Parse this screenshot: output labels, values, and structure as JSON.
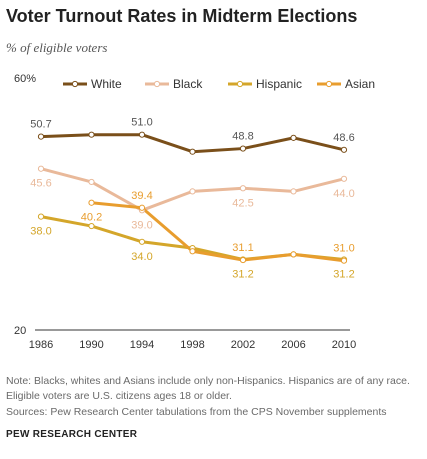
{
  "chart_data": {
    "type": "line",
    "title": "Voter Turnout Rates in Midterm Elections",
    "subtitle": "% of eligible voters",
    "x": [
      1986,
      1990,
      1994,
      1998,
      2002,
      2006,
      2010
    ],
    "x_tick_labels": [
      "1986",
      "1990",
      "1994",
      "1998",
      "2002",
      "2006",
      "2010"
    ],
    "ylim": [
      20,
      60
    ],
    "y_tick_labels": [
      "20",
      "60%"
    ],
    "grid": false,
    "legend_position": "top",
    "series": [
      {
        "name": "White",
        "color": "#7a4f1a",
        "values": [
          50.7,
          51.0,
          51.0,
          48.3,
          48.8,
          50.5,
          48.6
        ]
      },
      {
        "name": "Black",
        "color": "#e9b99a",
        "values": [
          45.6,
          43.5,
          39.0,
          42.0,
          42.5,
          42.0,
          44.0
        ]
      },
      {
        "name": "Hispanic",
        "color": "#d4a62a",
        "values": [
          38.0,
          36.5,
          34.0,
          33.0,
          31.2,
          32.0,
          31.2
        ]
      },
      {
        "name": "Asian",
        "color": "#e89d2e",
        "x": [
          1990,
          1994,
          1998,
          2002,
          2006,
          2010
        ],
        "values": [
          40.2,
          39.4,
          32.5,
          31.1,
          32.0,
          31.0
        ]
      }
    ],
    "data_labels": [
      {
        "text": "50.7",
        "series": "White",
        "x": 1986,
        "pos": "above"
      },
      {
        "text": "51.0",
        "series": "White",
        "x": 1994,
        "pos": "above"
      },
      {
        "text": "48.8",
        "series": "White",
        "x": 2002,
        "pos": "above"
      },
      {
        "text": "48.6",
        "series": "White",
        "x": 2010,
        "pos": "above"
      },
      {
        "text": "45.6",
        "series": "Black",
        "x": 1986,
        "pos": "below"
      },
      {
        "text": "39.0",
        "series": "Black",
        "x": 1994,
        "pos": "below"
      },
      {
        "text": "42.5",
        "series": "Black",
        "x": 2002,
        "pos": "below"
      },
      {
        "text": "44.0",
        "series": "Black",
        "x": 2010,
        "pos": "below"
      },
      {
        "text": "38.0",
        "series": "Hispanic",
        "x": 1986,
        "pos": "below"
      },
      {
        "text": "34.0",
        "series": "Hispanic",
        "x": 1994,
        "pos": "below"
      },
      {
        "text": "31.2",
        "series": "Hispanic",
        "x": 2002,
        "pos": "below"
      },
      {
        "text": "31.2",
        "series": "Hispanic",
        "x": 2010,
        "pos": "below"
      },
      {
        "text": "40.2",
        "series": "Asian",
        "x": 1990,
        "pos": "below"
      },
      {
        "text": "39.4",
        "series": "Asian",
        "x": 1994,
        "pos": "above"
      },
      {
        "text": "31.1",
        "series": "Asian",
        "x": 2002,
        "pos": "above"
      },
      {
        "text": "31.0",
        "series": "Asian",
        "x": 2010,
        "pos": "above"
      }
    ]
  },
  "footer": {
    "note": "Note: Blacks, whites and Asians include only non-Hispanics. Hispanics are of any race. Eligible voters are U.S. citizens ages 18 or older.",
    "source": "Sources: Pew Research Center tabulations from the CPS November supplements",
    "brand": "PEW RESEARCH CENTER"
  }
}
